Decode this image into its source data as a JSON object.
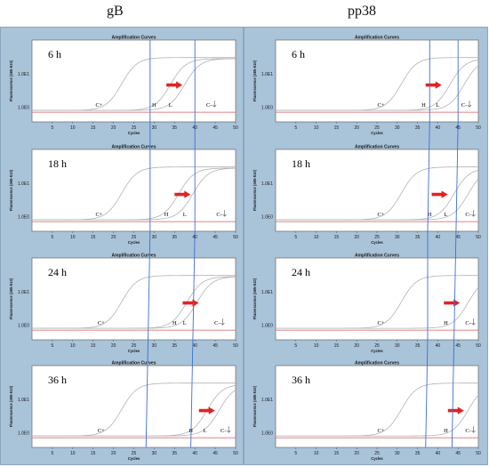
{
  "columns": [
    {
      "title": "gB"
    },
    {
      "title": "pp38"
    }
  ],
  "chart_data": [
    {
      "type": "line",
      "group": "gB",
      "title": "Amplification Curves",
      "time": "6 h",
      "xlabel": "Cycles",
      "ylabel": "Fluorescence (465-510)",
      "xticks": [
        5,
        10,
        15,
        20,
        25,
        30,
        35,
        40,
        45,
        50
      ],
      "xlim": [
        0,
        50
      ],
      "yticks": [
        "1.0E1",
        "1.0E0"
      ],
      "series": [
        {
          "name": "C+",
          "midpoint": 22,
          "plateau": 0.95
        },
        {
          "name": "H",
          "midpoint": 34,
          "plateau": 0.93
        },
        {
          "name": "L",
          "midpoint": 37.5,
          "plateau": 0.93
        }
      ],
      "sample_labels": [
        {
          "text": "C+",
          "cycle": 16.5
        },
        {
          "text": "H",
          "cycle": 30
        },
        {
          "text": "L",
          "cycle": 34
        },
        {
          "text": "C-",
          "cycle": 43.5
        }
      ],
      "arrow_cycle": 33,
      "guide_lines": [
        29,
        40
      ]
    },
    {
      "type": "line",
      "group": "gB",
      "title": "Amplification Curves",
      "time": "18 h",
      "xlabel": "Cycles",
      "ylabel": "Fluorescence (465-510)",
      "xticks": [
        5,
        10,
        15,
        20,
        25,
        30,
        35,
        40,
        45,
        50
      ],
      "xlim": [
        0,
        50
      ],
      "yticks": [
        "1.0E1",
        "1.0E0"
      ],
      "series": [
        {
          "name": "C+",
          "midpoint": 22,
          "plateau": 0.95
        },
        {
          "name": "H",
          "midpoint": 36,
          "plateau": 0.93
        },
        {
          "name": "L",
          "midpoint": 39.5,
          "plateau": 0.93
        }
      ],
      "sample_labels": [
        {
          "text": "C+",
          "cycle": 16.5
        },
        {
          "text": "H",
          "cycle": 33
        },
        {
          "text": "L",
          "cycle": 37.5
        },
        {
          "text": "C-",
          "cycle": 46
        }
      ],
      "arrow_cycle": 35,
      "guide_lines": [
        29,
        40
      ]
    },
    {
      "type": "line",
      "group": "gB",
      "title": "Amplification Curves",
      "time": "24 h",
      "xlabel": "Cycles",
      "ylabel": "Fluorescence (465-510)",
      "xticks": [
        5,
        10,
        15,
        20,
        25,
        30,
        35,
        40,
        45,
        50
      ],
      "xlim": [
        0,
        50
      ],
      "yticks": [
        "1.0E1",
        "1.0E0"
      ],
      "series": [
        {
          "name": "C+",
          "midpoint": 22,
          "plateau": 0.95
        },
        {
          "name": "H",
          "midpoint": 38,
          "plateau": 0.93
        },
        {
          "name": "L",
          "midpoint": 40.5,
          "plateau": 0.93
        }
      ],
      "sample_labels": [
        {
          "text": "C+",
          "cycle": 17
        },
        {
          "text": "H",
          "cycle": 35
        },
        {
          "text": "L",
          "cycle": 37.5
        },
        {
          "text": "C-",
          "cycle": 45.5
        }
      ],
      "arrow_cycle": 37,
      "guide_lines": [
        28.5,
        39.5
      ]
    },
    {
      "type": "line",
      "group": "gB",
      "title": "Amplification Curves",
      "time": "36 h",
      "xlabel": "Cycles",
      "ylabel": "Fluorescence (465-510)",
      "xticks": [
        5,
        10,
        15,
        20,
        25,
        30,
        35,
        40,
        45,
        50
      ],
      "xlim": [
        0,
        50
      ],
      "yticks": [
        "1.0E1",
        "1.0E0"
      ],
      "series": [
        {
          "name": "C+",
          "midpoint": 22,
          "plateau": 0.95
        },
        {
          "name": "H",
          "midpoint": 43,
          "plateau": 0.93
        },
        {
          "name": "L",
          "midpoint": 46,
          "plateau": 0.93
        }
      ],
      "sample_labels": [
        {
          "text": "C+",
          "cycle": 17
        },
        {
          "text": "H",
          "cycle": 39
        },
        {
          "text": "L",
          "cycle": 42.5
        },
        {
          "text": "C-",
          "cycle": 47
        }
      ],
      "arrow_cycle": 41,
      "guide_lines": [
        28,
        39
      ]
    },
    {
      "type": "line",
      "group": "pp38",
      "title": "Amplification Curves",
      "time": "6 h",
      "xlabel": "Cycles",
      "ylabel": "Fluorescence (465-510)",
      "xticks": [
        5,
        10,
        15,
        20,
        25,
        30,
        35,
        40,
        45,
        50
      ],
      "xlim": [
        0,
        50
      ],
      "yticks": [
        "1.0E1",
        "1.0E0"
      ],
      "series": [
        {
          "name": "C+",
          "midpoint": 31,
          "plateau": 0.95
        },
        {
          "name": "H",
          "midpoint": 43,
          "plateau": 0.93
        },
        {
          "name": "L",
          "midpoint": 46.5,
          "plateau": 0.93
        }
      ],
      "sample_labels": [
        {
          "text": "C+",
          "cycle": 26
        },
        {
          "text": "H",
          "cycle": 36.5
        },
        {
          "text": "L",
          "cycle": 40
        },
        {
          "text": "C-",
          "cycle": 46.5
        }
      ],
      "arrow_cycle": 37,
      "guide_lines": [
        38,
        45
      ]
    },
    {
      "type": "line",
      "group": "pp38",
      "title": "Amplification Curves",
      "time": "18 h",
      "xlabel": "Cycles",
      "ylabel": "Fluorescence (465-510)",
      "xticks": [
        5,
        10,
        15,
        20,
        25,
        30,
        35,
        40,
        45,
        50
      ],
      "xlim": [
        0,
        50
      ],
      "yticks": [
        "1.0E1",
        "1.0E0"
      ],
      "series": [
        {
          "name": "C+",
          "midpoint": 31,
          "plateau": 0.95
        },
        {
          "name": "H",
          "midpoint": 44,
          "plateau": 0.93
        },
        {
          "name": "L",
          "midpoint": 47.5,
          "plateau": 0.93
        }
      ],
      "sample_labels": [
        {
          "text": "C+",
          "cycle": 26
        },
        {
          "text": "H",
          "cycle": 38
        },
        {
          "text": "L",
          "cycle": 42
        },
        {
          "text": "C-",
          "cycle": 47.5
        }
      ],
      "arrow_cycle": 38.5,
      "guide_lines": [
        37.5,
        44.5
      ]
    },
    {
      "type": "line",
      "group": "pp38",
      "title": "Amplification Curves",
      "time": "24 h",
      "xlabel": "Cycles",
      "ylabel": "Fluorescence (465-510)",
      "xticks": [
        5,
        10,
        15,
        20,
        25,
        30,
        35,
        40,
        45,
        50
      ],
      "xlim": [
        0,
        50
      ],
      "yticks": [
        "1.0E1",
        "1.0E0"
      ],
      "series": [
        {
          "name": "C+",
          "midpoint": 31,
          "plateau": 0.95
        },
        {
          "name": "H",
          "midpoint": 47.5,
          "plateau": 0.93
        }
      ],
      "sample_labels": [
        {
          "text": "C+",
          "cycle": 26
        },
        {
          "text": "H",
          "cycle": 42
        },
        {
          "text": "C-",
          "cycle": 47.5
        }
      ],
      "arrow_cycle": 41.5,
      "guide_lines": [
        37.5,
        44
      ]
    },
    {
      "type": "line",
      "group": "pp38",
      "title": "Amplification Curves",
      "time": "36 h",
      "xlabel": "Cycles",
      "ylabel": "Fluorescence (465-510)",
      "xticks": [
        5,
        10,
        15,
        20,
        25,
        30,
        35,
        40,
        45,
        50
      ],
      "xlim": [
        0,
        50
      ],
      "yticks": [
        "1.0E1",
        "1.0E0"
      ],
      "series": [
        {
          "name": "C+",
          "midpoint": 31,
          "plateau": 0.95
        },
        {
          "name": "H",
          "midpoint": 47.5,
          "plateau": 0.93
        }
      ],
      "sample_labels": [
        {
          "text": "C+",
          "cycle": 26
        },
        {
          "text": "H",
          "cycle": 42
        },
        {
          "text": "C-",
          "cycle": 47.5
        }
      ],
      "arrow_cycle": 42.5,
      "guide_lines": [
        37,
        43.5
      ]
    }
  ],
  "colors": {
    "frame": "#a9c3d9",
    "curve": "#b3b3b3",
    "baseline": "#d85a5a",
    "guide_line": "#3d6fd1",
    "arrow": "#e32222"
  }
}
